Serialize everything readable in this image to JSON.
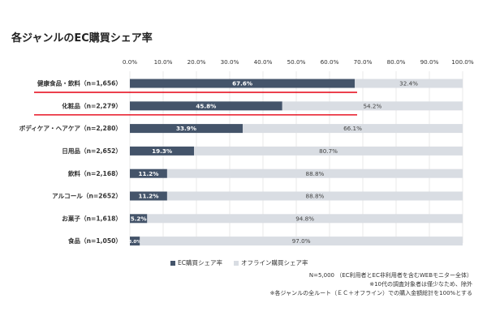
{
  "title": "各ジャンルのEC購買シェア率",
  "chart_data": {
    "type": "bar",
    "orientation": "horizontal",
    "stacked": true,
    "categories": [
      "健康食品・飲料（n=1,656）",
      "化粧品（n=2,279）",
      "ボディケア・ヘアケア（n=2,280）",
      "日用品（n=2,652）",
      "飲料（n=2,168）",
      "アルコール（n=2652）",
      "お菓子（n=1,618）",
      "食品（n=1,050）"
    ],
    "series": [
      {
        "name": "EC購買シェア率",
        "color": "#44546a",
        "values": [
          67.6,
          45.8,
          33.9,
          19.3,
          11.2,
          11.2,
          5.2,
          3.0
        ],
        "labels": [
          "67.6%",
          "45.8%",
          "33.9%",
          "19.3%",
          "11.2%",
          "11.2%",
          "5.2%",
          "3.0%"
        ]
      },
      {
        "name": "オフライン購買シェア率",
        "color": "#d9dde3",
        "values": [
          32.4,
          54.2,
          66.1,
          80.7,
          88.8,
          88.8,
          94.8,
          97.0
        ],
        "labels": [
          "32.4%",
          "54.2%",
          "66.1%",
          "80.7%",
          "88.8%",
          "88.8%",
          "94.8%",
          "97.0%"
        ]
      }
    ],
    "xticks": [
      "0.0%",
      "10.0%",
      "20.0%",
      "30.0%",
      "40.0%",
      "50.0%",
      "60.0%",
      "70.0%",
      "80.0%",
      "90.0%",
      "100.0%"
    ],
    "xlim": [
      0,
      100
    ],
    "grid": true,
    "legend_position": "bottom",
    "highlighted_categories": [
      0,
      1
    ],
    "highlight_color": "#e60012"
  },
  "notes": [
    "N=5,000 （EC利用者とEC非利用者を含むWEBモニター全体）",
    "※10代の調査対象者は僅少なため、除外",
    "※各ジャンルの全ルート（ＥＣ＋オフライン）での購入金額総計を100%とする"
  ]
}
